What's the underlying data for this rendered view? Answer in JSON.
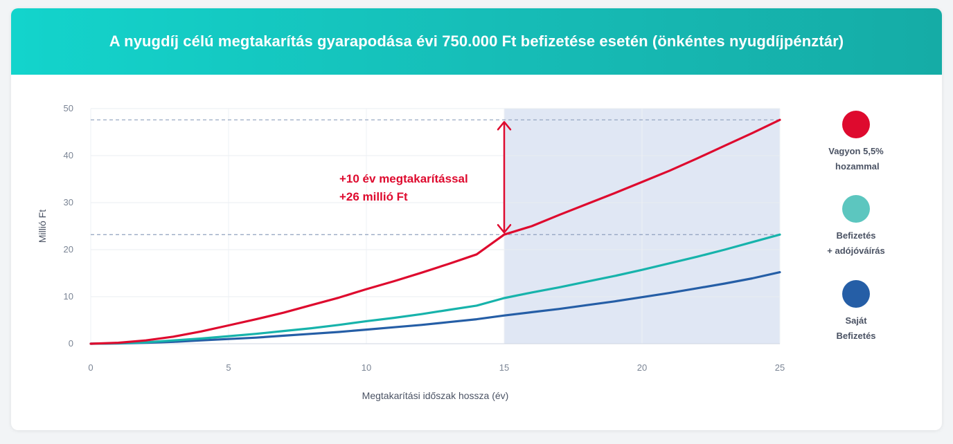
{
  "header": {
    "title": "A nyugdíj célú megtakarítás gyarapodása évi 750.000 Ft befizetése esetén (önkéntes nyugdíjpénztár)"
  },
  "chart_data": {
    "type": "line",
    "title": "A nyugdíj célú megtakarítás gyarapodása évi 750.000 Ft befizetése esetén (önkéntes nyugdíjpénztár)",
    "xlabel": "Megtakarítási időszak hossza (év)",
    "ylabel": "Millió Ft",
    "xlim": [
      0,
      25
    ],
    "ylim": [
      0,
      50
    ],
    "xticks": [
      0,
      5,
      10,
      15,
      20,
      25
    ],
    "yticks": [
      0,
      10,
      20,
      30,
      40,
      50
    ],
    "grid": true,
    "highlight_region": {
      "x_from": 15,
      "x_to": 25
    },
    "reference_lines_y": [
      47.6,
      23.2
    ],
    "x": [
      0,
      1,
      2,
      3,
      4,
      5,
      6,
      7,
      8,
      9,
      10,
      11,
      12,
      13,
      14,
      15,
      16,
      17,
      18,
      19,
      20,
      21,
      22,
      23,
      24,
      25
    ],
    "series": [
      {
        "name": "Vagyon 5,5% hozammal",
        "color": "#de0a2e",
        "values": [
          0,
          0.2,
          0.7,
          1.5,
          2.6,
          3.9,
          5.2,
          6.6,
          8.2,
          9.8,
          11.6,
          13.3,
          15.1,
          17.0,
          19.0,
          23.2,
          25.0,
          27.4,
          29.7,
          32.0,
          34.4,
          36.8,
          39.4,
          42.1,
          44.8,
          47.6
        ]
      },
      {
        "name": "Befizetés + adójóváírás",
        "color": "#17b3ab",
        "values": [
          0,
          0.1,
          0.3,
          0.7,
          1.1,
          1.6,
          2.1,
          2.7,
          3.3,
          4.0,
          4.8,
          5.5,
          6.3,
          7.2,
          8.1,
          9.7,
          10.9,
          12.0,
          13.2,
          14.4,
          15.7,
          17.1,
          18.5,
          20.0,
          21.6,
          23.2
        ]
      },
      {
        "name": "Saját Befizetés",
        "color": "#255ea6",
        "values": [
          0,
          0.05,
          0.2,
          0.4,
          0.7,
          1.0,
          1.3,
          1.7,
          2.1,
          2.5,
          3.0,
          3.5,
          4.0,
          4.6,
          5.2,
          6.0,
          6.7,
          7.4,
          8.2,
          9.0,
          9.9,
          10.8,
          11.8,
          12.8,
          13.9,
          15.2
        ]
      }
    ],
    "annotation": {
      "line1": "+10 év megtakarítással",
      "line2": "+26 millió Ft"
    }
  },
  "legend": [
    {
      "label": "Vagyon 5,5%\n hozammal",
      "color": "#de0a2e"
    },
    {
      "label": "Befizetés\n+ adójóváírás",
      "color": "#5cc6bf"
    },
    {
      "label": "Saját\nBefizetés",
      "color": "#255ea6"
    }
  ]
}
